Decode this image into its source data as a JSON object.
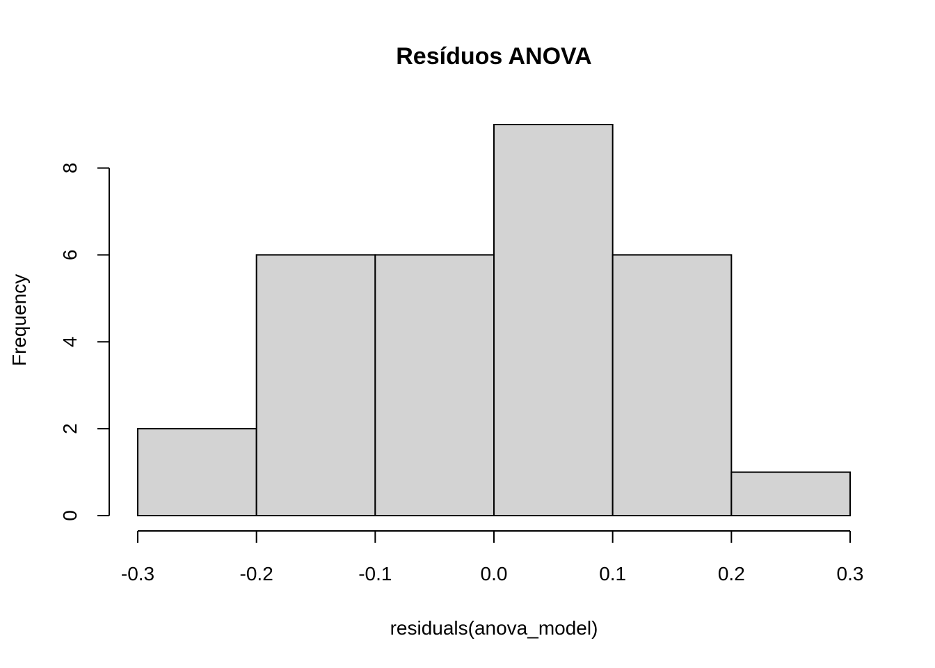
{
  "chart_data": {
    "type": "bar",
    "title": "Resíduos ANOVA",
    "xlabel": "residuals(anova_model)",
    "ylabel": "Frequency",
    "bin_edges": [
      -0.3,
      -0.2,
      -0.1,
      0.0,
      0.1,
      0.2,
      0.3
    ],
    "values": [
      2,
      6,
      6,
      9,
      6,
      1
    ],
    "xlim": [
      -0.3,
      0.3
    ],
    "ylim": [
      0,
      9
    ],
    "x_ticks": [
      -0.3,
      -0.2,
      -0.1,
      0.0,
      0.1,
      0.2,
      0.3
    ],
    "x_tick_labels": [
      "-0.3",
      "-0.2",
      "-0.1",
      "0.0",
      "0.1",
      "0.2",
      "0.3"
    ],
    "y_ticks": [
      0,
      2,
      4,
      6,
      8
    ],
    "y_tick_labels": [
      "0",
      "2",
      "4",
      "6",
      "8"
    ],
    "grid": false,
    "bar_color": "#d3d3d3",
    "edge_color": "#000000"
  }
}
